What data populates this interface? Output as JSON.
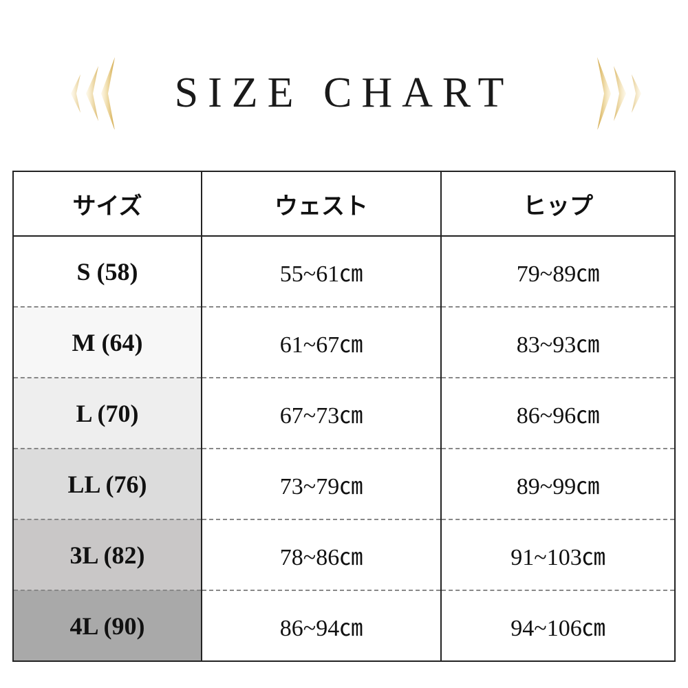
{
  "title": "SIZE CHART",
  "decoration": {
    "icon": "gold-chevrons-icon",
    "color": "#d9b048"
  },
  "table": {
    "headers": [
      "サイズ",
      "ウェスト",
      "ヒップ"
    ],
    "rows": [
      {
        "size": "S (58)",
        "waist": "55~61㎝",
        "hip": "79~89㎝",
        "shade": "#ffffff"
      },
      {
        "size": "M (64)",
        "waist": "61~67㎝",
        "hip": "83~93㎝",
        "shade": "#f7f7f7"
      },
      {
        "size": "L (70)",
        "waist": "67~73㎝",
        "hip": "86~96㎝",
        "shade": "#eeeeee"
      },
      {
        "size": "LL (76)",
        "waist": "73~79㎝",
        "hip": "89~99㎝",
        "shade": "#dcdcdc"
      },
      {
        "size": "3L (82)",
        "waist": "78~86㎝",
        "hip": "91~103㎝",
        "shade": "#c9c7c7"
      },
      {
        "size": "4L (90)",
        "waist": "86~94㎝",
        "hip": "94~106㎝",
        "shade": "#a9a9a9"
      }
    ]
  }
}
